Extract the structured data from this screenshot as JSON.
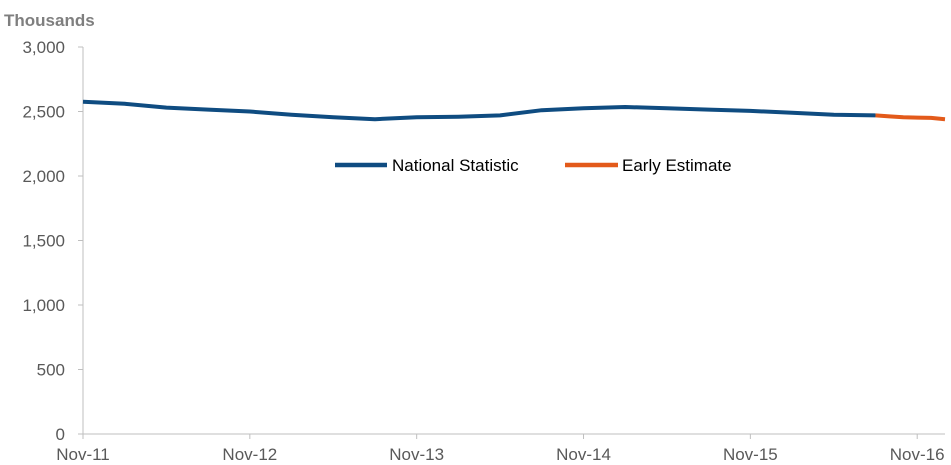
{
  "chart_data": {
    "type": "line",
    "unit_label": "Thousands",
    "ylim": [
      0,
      3000
    ],
    "y_ticks": [
      0,
      500,
      1000,
      1500,
      2000,
      2500,
      3000
    ],
    "y_tick_labels": [
      "0",
      "500",
      "1,000",
      "1,500",
      "2,000",
      "2,500",
      "3,000"
    ],
    "x_range": [
      0,
      62
    ],
    "x_ticks": [
      0,
      12,
      24,
      36,
      48,
      60
    ],
    "x_tick_labels": [
      "Nov-11",
      "Nov-12",
      "Nov-13",
      "Nov-14",
      "Nov-15",
      "Nov-16"
    ],
    "grid": false,
    "legend_position": "center",
    "series": [
      {
        "name": "National Statistic",
        "color": "#0f4c81",
        "points": [
          [
            0,
            2575
          ],
          [
            3,
            2560
          ],
          [
            6,
            2530
          ],
          [
            9,
            2515
          ],
          [
            12,
            2500
          ],
          [
            15,
            2475
          ],
          [
            18,
            2455
          ],
          [
            21,
            2440
          ],
          [
            24,
            2455
          ],
          [
            27,
            2460
          ],
          [
            30,
            2470
          ],
          [
            33,
            2510
          ],
          [
            36,
            2525
          ],
          [
            39,
            2535
          ],
          [
            42,
            2525
          ],
          [
            45,
            2515
          ],
          [
            48,
            2505
          ],
          [
            51,
            2490
          ],
          [
            54,
            2475
          ],
          [
            57,
            2470
          ]
        ]
      },
      {
        "name": "Early Estimate",
        "color": "#e35a1a",
        "points": [
          [
            57,
            2470
          ],
          [
            58,
            2462
          ],
          [
            59,
            2456
          ],
          [
            60,
            2453
          ],
          [
            61,
            2450
          ],
          [
            62,
            2440
          ]
        ]
      }
    ]
  }
}
